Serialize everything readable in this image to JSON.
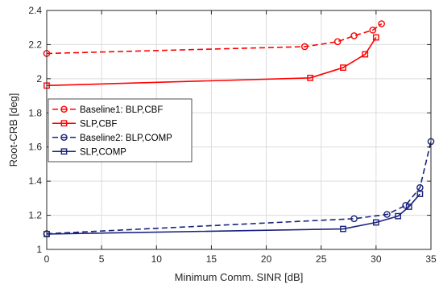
{
  "chart_data": {
    "type": "line",
    "xlabel": "Minimum Comm. SINR [dB]",
    "ylabel": "Root-CRB [deg]",
    "xlim": [
      0,
      35
    ],
    "ylim": [
      1,
      2.4
    ],
    "xticks": [
      0,
      5,
      10,
      15,
      20,
      25,
      30,
      35
    ],
    "yticks": [
      1,
      1.2,
      1.4,
      1.6,
      1.8,
      2,
      2.2,
      2.4
    ],
    "xtick_labels": [
      "0",
      "5",
      "10",
      "15",
      "20",
      "25",
      "30",
      "35"
    ],
    "ytick_labels": [
      "1",
      "1.2",
      "1.4",
      "1.6",
      "1.8",
      "2",
      "2.2",
      "2.4"
    ],
    "grid": true,
    "legend_position": "middle-left",
    "series": [
      {
        "name": "Baseline1: BLP,CBF",
        "color": "#ff0000",
        "line": "dashed",
        "marker": "circle",
        "x": [
          0,
          23.5,
          26.5,
          28,
          29.7,
          30.5
        ],
        "y": [
          2.148,
          2.188,
          2.217,
          2.252,
          2.285,
          2.322
        ]
      },
      {
        "name": "SLP,CBF",
        "color": "#ff0000",
        "line": "solid",
        "marker": "square",
        "x": [
          0,
          24,
          27,
          29,
          30
        ],
        "y": [
          1.96,
          2.005,
          2.065,
          2.143,
          2.242
        ]
      },
      {
        "name": "Baseline2: BLP,COMP",
        "color": "#1a237e",
        "line": "dashed",
        "marker": "circle",
        "x": [
          0,
          28,
          31,
          32.7,
          34,
          35
        ],
        "y": [
          1.092,
          1.18,
          1.205,
          1.258,
          1.362,
          1.632
        ]
      },
      {
        "name": "SLP,COMP",
        "color": "#1a237e",
        "line": "solid",
        "marker": "square",
        "x": [
          0,
          27,
          30,
          32,
          33,
          34
        ],
        "y": [
          1.09,
          1.12,
          1.158,
          1.195,
          1.25,
          1.325
        ]
      }
    ]
  }
}
